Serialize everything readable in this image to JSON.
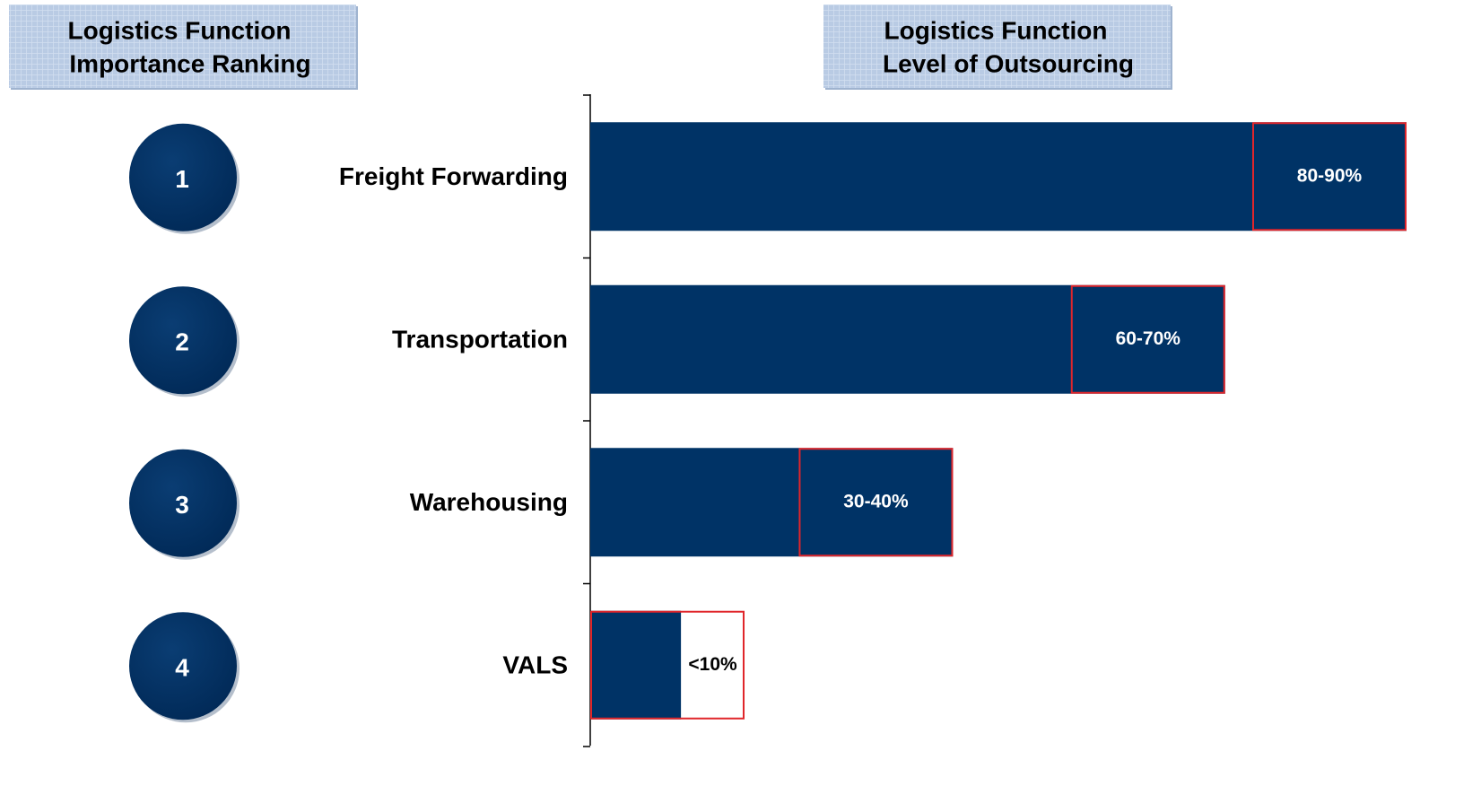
{
  "chart_data": {
    "type": "bar",
    "title": [
      "Logistics Function",
      "Level of Outsourcing"
    ],
    "rank_title": [
      "Logistics Function",
      "Importance Ranking"
    ],
    "ranks": [
      "1",
      "2",
      "3",
      "4"
    ],
    "categories": [
      "Freight Forwarding",
      "Transportation",
      "Warehousing",
      "VALS"
    ],
    "values": [
      90,
      70,
      40,
      10
    ],
    "value_labels": [
      "80-90%",
      "60-70%",
      "30-40%",
      "<10%"
    ],
    "xlim": [
      0,
      90
    ],
    "color": "#003366",
    "outline_color": "#e0262b"
  }
}
